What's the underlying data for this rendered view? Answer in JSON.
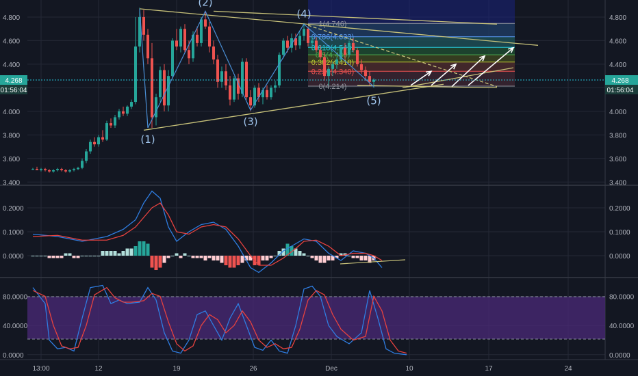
{
  "colors": {
    "background": "#131722",
    "grid": "#242836",
    "up": "#26a69a",
    "down": "#ef5350",
    "trendline": "#c8c27a",
    "wave": "#4a8fd6",
    "macd": "#2f7de1",
    "signal": "#e8423f",
    "stoch_band": "#4b2a78",
    "price_line": "#26c6da"
  },
  "chart_data": [
    {
      "type": "candlestick",
      "title": "",
      "y_ticks": [
        "4.800",
        "4.600",
        "4.400",
        "4.200",
        "4.000",
        "3.800",
        "3.600",
        "3.400"
      ],
      "y_tick_values": [
        4.8,
        4.6,
        4.4,
        4.2,
        4.0,
        3.8,
        3.6,
        3.4
      ],
      "ylim": [
        3.39,
        4.91
      ],
      "x_ticks": [
        "13:00",
        "12",
        "19",
        "26",
        "Dec",
        "10",
        "17",
        "24"
      ],
      "last_price": "4.268",
      "last_price_value": 4.268,
      "countdown": "01:56:04",
      "countdown_right": "01:56:04",
      "wave_labels": [
        "(1)",
        "(2)",
        "(3)",
        "(4)",
        "(5)"
      ],
      "wave_points": [
        {
          "i": 28,
          "v": 3.86
        },
        {
          "i": 42,
          "v": 4.85
        },
        {
          "i": 53,
          "v": 4.01
        },
        {
          "i": 66,
          "v": 4.74
        },
        {
          "i": 83,
          "v": 4.21
        }
      ],
      "fib_levels": [
        {
          "ratio": "1(4.746)",
          "value": 4.746,
          "color": "#9598a1"
        },
        {
          "ratio": "0.786(4.633)",
          "value": 4.633,
          "color": "#5b9cf5"
        },
        {
          "ratio": "0.618(4.543)",
          "value": 4.543,
          "color": "#26c6da"
        },
        {
          "ratio": "0.5(4.480)",
          "value": 4.48,
          "color": "#4caf50"
        },
        {
          "ratio": "0.382(4.418)",
          "value": 4.418,
          "color": "#c0ca33"
        },
        {
          "ratio": "0.236(4.340)",
          "value": 4.34,
          "color": "#ef5350"
        },
        {
          "ratio": "0(4.214)",
          "value": 4.214,
          "color": "#9598a1"
        }
      ],
      "candles": [
        [
          3.51,
          3.52,
          3.5,
          3.51
        ],
        [
          3.51,
          3.53,
          3.5,
          3.5
        ],
        [
          3.5,
          3.52,
          3.49,
          3.51
        ],
        [
          3.51,
          3.52,
          3.49,
          3.5
        ],
        [
          3.5,
          3.51,
          3.48,
          3.49
        ],
        [
          3.49,
          3.51,
          3.48,
          3.5
        ],
        [
          3.5,
          3.52,
          3.49,
          3.51
        ],
        [
          3.51,
          3.52,
          3.49,
          3.5
        ],
        [
          3.5,
          3.51,
          3.48,
          3.49
        ],
        [
          3.49,
          3.51,
          3.48,
          3.5
        ],
        [
          3.5,
          3.52,
          3.49,
          3.51
        ],
        [
          3.51,
          3.53,
          3.5,
          3.52
        ],
        [
          3.52,
          3.6,
          3.51,
          3.58
        ],
        [
          3.58,
          3.68,
          3.56,
          3.66
        ],
        [
          3.66,
          3.76,
          3.64,
          3.74
        ],
        [
          3.74,
          3.78,
          3.7,
          3.72
        ],
        [
          3.72,
          3.8,
          3.7,
          3.78
        ],
        [
          3.78,
          3.84,
          3.74,
          3.76
        ],
        [
          3.76,
          3.92,
          3.75,
          3.9
        ],
        [
          3.9,
          3.94,
          3.86,
          3.88
        ],
        [
          3.88,
          3.97,
          3.86,
          3.95
        ],
        [
          3.95,
          4.02,
          3.93,
          4.0
        ],
        [
          4.0,
          4.04,
          3.96,
          3.98
        ],
        [
          3.98,
          4.05,
          3.96,
          4.04
        ],
        [
          4.04,
          4.1,
          4.02,
          4.08
        ],
        [
          4.08,
          4.8,
          4.06,
          4.55
        ],
        [
          4.55,
          4.88,
          4.5,
          4.8
        ],
        [
          4.8,
          4.86,
          4.6,
          4.65
        ],
        [
          4.65,
          4.7,
          4.4,
          4.45
        ],
        [
          4.45,
          4.58,
          3.86,
          3.95
        ],
        [
          3.95,
          4.15,
          3.88,
          4.12
        ],
        [
          4.12,
          4.38,
          4.08,
          4.35
        ],
        [
          4.35,
          4.4,
          4.0,
          4.05
        ],
        [
          4.05,
          4.35,
          4.0,
          4.3
        ],
        [
          4.3,
          4.62,
          4.28,
          4.6
        ],
        [
          4.6,
          4.7,
          4.52,
          4.55
        ],
        [
          4.55,
          4.72,
          4.5,
          4.7
        ],
        [
          4.7,
          4.74,
          4.5,
          4.52
        ],
        [
          4.52,
          4.6,
          4.4,
          4.45
        ],
        [
          4.45,
          4.68,
          4.42,
          4.65
        ],
        [
          4.65,
          4.72,
          4.55,
          4.58
        ],
        [
          4.58,
          4.8,
          4.55,
          4.78
        ],
        [
          4.78,
          4.85,
          4.7,
          4.72
        ],
        [
          4.72,
          4.76,
          4.5,
          4.55
        ],
        [
          4.55,
          4.6,
          4.4,
          4.44
        ],
        [
          4.44,
          4.48,
          4.2,
          4.25
        ],
        [
          4.25,
          4.38,
          4.2,
          4.34
        ],
        [
          4.34,
          4.4,
          4.18,
          4.22
        ],
        [
          4.22,
          4.3,
          4.05,
          4.1
        ],
        [
          4.1,
          4.3,
          4.08,
          4.28
        ],
        [
          4.28,
          4.32,
          4.1,
          4.15
        ],
        [
          4.15,
          4.45,
          4.12,
          4.42
        ],
        [
          4.42,
          4.45,
          4.1,
          4.12
        ],
        [
          4.12,
          4.18,
          4.0,
          4.05
        ],
        [
          4.05,
          4.22,
          4.03,
          4.2
        ],
        [
          4.2,
          4.24,
          4.08,
          4.12
        ],
        [
          4.12,
          4.2,
          4.06,
          4.18
        ],
        [
          4.18,
          4.22,
          4.1,
          4.12
        ],
        [
          4.12,
          4.22,
          4.1,
          4.2
        ],
        [
          4.2,
          4.26,
          4.16,
          4.22
        ],
        [
          4.22,
          4.5,
          4.2,
          4.48
        ],
        [
          4.48,
          4.62,
          4.45,
          4.6
        ],
        [
          4.6,
          4.64,
          4.5,
          4.54
        ],
        [
          4.54,
          4.66,
          4.5,
          4.62
        ],
        [
          4.62,
          4.66,
          4.52,
          4.56
        ],
        [
          4.56,
          4.68,
          4.53,
          4.64
        ],
        [
          4.64,
          4.75,
          4.6,
          4.7
        ],
        [
          4.7,
          4.72,
          4.55,
          4.58
        ],
        [
          4.58,
          4.64,
          4.52,
          4.6
        ],
        [
          4.6,
          4.63,
          4.5,
          4.52
        ],
        [
          4.52,
          4.56,
          4.44,
          4.46
        ],
        [
          4.46,
          4.5,
          4.26,
          4.3
        ],
        [
          4.3,
          4.38,
          4.22,
          4.36
        ],
        [
          4.36,
          4.42,
          4.3,
          4.4
        ],
        [
          4.4,
          4.46,
          4.36,
          4.44
        ],
        [
          4.44,
          4.56,
          4.42,
          4.54
        ],
        [
          4.54,
          4.58,
          4.44,
          4.48
        ],
        [
          4.48,
          4.6,
          4.46,
          4.58
        ],
        [
          4.58,
          4.62,
          4.5,
          4.52
        ],
        [
          4.52,
          4.54,
          4.38,
          4.4
        ],
        [
          4.4,
          4.44,
          4.32,
          4.35
        ],
        [
          4.35,
          4.38,
          4.26,
          4.3
        ],
        [
          4.3,
          4.34,
          4.22,
          4.25
        ],
        [
          4.25,
          4.28,
          4.2,
          4.268
        ]
      ]
    },
    {
      "type": "macd",
      "y_ticks": [
        "0.2000",
        "0.1000",
        "0.0000"
      ],
      "y_tick_values": [
        0.2,
        0.1,
        0.0
      ],
      "ylim": [
        -0.08,
        0.28
      ],
      "macd_points": [
        [
          0,
          0.09
        ],
        [
          6,
          0.08
        ],
        [
          12,
          0.06
        ],
        [
          18,
          0.08
        ],
        [
          22,
          0.11
        ],
        [
          25,
          0.15
        ],
        [
          27,
          0.22
        ],
        [
          29,
          0.27
        ],
        [
          31,
          0.24
        ],
        [
          33,
          0.12
        ],
        [
          35,
          0.06
        ],
        [
          38,
          0.1
        ],
        [
          41,
          0.13
        ],
        [
          44,
          0.14
        ],
        [
          47,
          0.11
        ],
        [
          50,
          0.04
        ],
        [
          53,
          -0.05
        ],
        [
          55,
          -0.07
        ],
        [
          58,
          -0.03
        ],
        [
          61,
          0.02
        ],
        [
          64,
          0.05
        ],
        [
          66,
          0.07
        ],
        [
          69,
          0.06
        ],
        [
          72,
          0.01
        ],
        [
          75,
          -0.02
        ],
        [
          78,
          0.02
        ],
        [
          81,
          0.01
        ],
        [
          83,
          -0.01
        ],
        [
          85,
          -0.05
        ]
      ],
      "signal_points": [
        [
          0,
          0.08
        ],
        [
          6,
          0.085
        ],
        [
          12,
          0.065
        ],
        [
          18,
          0.065
        ],
        [
          22,
          0.085
        ],
        [
          25,
          0.12
        ],
        [
          27,
          0.16
        ],
        [
          29,
          0.2
        ],
        [
          31,
          0.22
        ],
        [
          33,
          0.17
        ],
        [
          35,
          0.1
        ],
        [
          38,
          0.09
        ],
        [
          41,
          0.12
        ],
        [
          44,
          0.13
        ],
        [
          47,
          0.12
        ],
        [
          50,
          0.07
        ],
        [
          53,
          0.0
        ],
        [
          55,
          -0.04
        ],
        [
          58,
          -0.04
        ],
        [
          61,
          -0.01
        ],
        [
          64,
          0.03
        ],
        [
          66,
          0.06
        ],
        [
          69,
          0.065
        ],
        [
          72,
          0.04
        ],
        [
          75,
          0.0
        ],
        [
          78,
          0.01
        ],
        [
          81,
          0.01
        ],
        [
          83,
          0.0
        ],
        [
          85,
          -0.02
        ]
      ],
      "histogram": [
        0.0,
        0.0,
        0.0,
        0.0,
        -0.01,
        -0.01,
        -0.01,
        -0.01,
        0.01,
        0.01,
        -0.01,
        -0.01,
        0.0,
        0.0,
        0.0,
        0.0,
        0.0,
        0.02,
        0.02,
        0.02,
        0.02,
        0.01,
        0.02,
        0.03,
        0.03,
        0.04,
        0.06,
        0.06,
        0.05,
        -0.05,
        -0.06,
        -0.05,
        -0.03,
        -0.01,
        0.0,
        0.01,
        -0.01,
        0.01,
        0.0,
        -0.01,
        -0.01,
        -0.01,
        -0.02,
        -0.01,
        -0.02,
        -0.02,
        -0.03,
        -0.04,
        -0.05,
        -0.05,
        -0.04,
        -0.03,
        -0.02,
        -0.02,
        -0.04,
        -0.04,
        -0.02,
        -0.02,
        -0.01,
        0.0,
        0.02,
        0.03,
        0.05,
        0.04,
        0.03,
        0.02,
        0.01,
        0.0,
        -0.01,
        -0.02,
        -0.03,
        -0.03,
        -0.02,
        -0.02,
        -0.01,
        0.01,
        0.01,
        0.0,
        -0.01,
        -0.01,
        -0.02,
        -0.02,
        -0.03,
        -0.02
      ]
    },
    {
      "type": "stochastic",
      "y_ticks": [
        "80.0000",
        "40.0000",
        "0.0000"
      ],
      "y_tick_values": [
        80,
        40,
        0
      ],
      "ylim": [
        -3,
        102
      ],
      "band": [
        20,
        80
      ],
      "k_points": [
        [
          0,
          92
        ],
        [
          3,
          70
        ],
        [
          4,
          20
        ],
        [
          6,
          8
        ],
        [
          8,
          10
        ],
        [
          10,
          5
        ],
        [
          12,
          50
        ],
        [
          14,
          92
        ],
        [
          17,
          95
        ],
        [
          19,
          70
        ],
        [
          21,
          75
        ],
        [
          23,
          70
        ],
        [
          26,
          72
        ],
        [
          28,
          92
        ],
        [
          30,
          75
        ],
        [
          32,
          30
        ],
        [
          34,
          5
        ],
        [
          36,
          2
        ],
        [
          38,
          20
        ],
        [
          40,
          55
        ],
        [
          42,
          60
        ],
        [
          44,
          40
        ],
        [
          46,
          20
        ],
        [
          48,
          50
        ],
        [
          50,
          70
        ],
        [
          52,
          40
        ],
        [
          54,
          10
        ],
        [
          56,
          6
        ],
        [
          58,
          20
        ],
        [
          60,
          5
        ],
        [
          62,
          2
        ],
        [
          64,
          40
        ],
        [
          66,
          90
        ],
        [
          68,
          94
        ],
        [
          70,
          80
        ],
        [
          72,
          40
        ],
        [
          74,
          25
        ],
        [
          77,
          15
        ],
        [
          80,
          30
        ],
        [
          82,
          88
        ],
        [
          84,
          50
        ],
        [
          86,
          8
        ],
        [
          88,
          2
        ],
        [
          91,
          0
        ]
      ],
      "d_points": [
        [
          0,
          88
        ],
        [
          3,
          80
        ],
        [
          5,
          40
        ],
        [
          7,
          12
        ],
        [
          9,
          8
        ],
        [
          11,
          10
        ],
        [
          13,
          40
        ],
        [
          15,
          82
        ],
        [
          18,
          92
        ],
        [
          20,
          78
        ],
        [
          22,
          72
        ],
        [
          24,
          72
        ],
        [
          27,
          74
        ],
        [
          29,
          84
        ],
        [
          31,
          80
        ],
        [
          33,
          45
        ],
        [
          35,
          15
        ],
        [
          37,
          5
        ],
        [
          39,
          12
        ],
        [
          41,
          40
        ],
        [
          43,
          55
        ],
        [
          45,
          48
        ],
        [
          47,
          30
        ],
        [
          49,
          40
        ],
        [
          51,
          60
        ],
        [
          53,
          45
        ],
        [
          55,
          20
        ],
        [
          57,
          10
        ],
        [
          59,
          15
        ],
        [
          61,
          8
        ],
        [
          63,
          10
        ],
        [
          65,
          35
        ],
        [
          67,
          75
        ],
        [
          69,
          88
        ],
        [
          71,
          82
        ],
        [
          73,
          55
        ],
        [
          75,
          35
        ],
        [
          78,
          20
        ],
        [
          81,
          25
        ],
        [
          83,
          80
        ],
        [
          85,
          60
        ],
        [
          87,
          20
        ],
        [
          89,
          5
        ],
        [
          91,
          2
        ]
      ]
    }
  ]
}
